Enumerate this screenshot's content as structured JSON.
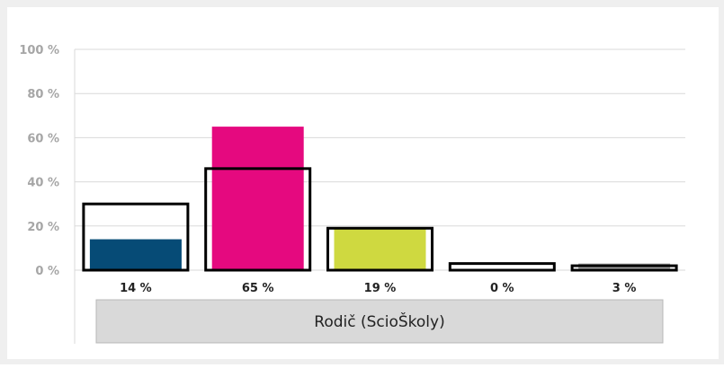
{
  "chart_data": {
    "type": "bar",
    "categories": [
      "",
      "",
      "",
      "",
      ""
    ],
    "series": [
      {
        "values": [
          14,
          65,
          19,
          0,
          3
        ]
      },
      {
        "values": [
          30,
          46,
          19,
          3,
          2
        ]
      }
    ],
    "data_labels": [
      "14 %",
      "65 %",
      "19 %",
      "0 %",
      "3 %"
    ],
    "y_ticks": [
      "0 %",
      "20 %",
      "40 %",
      "60 %",
      "80 %",
      "100 %"
    ],
    "ylim": [
      0,
      100
    ],
    "group_label": "Rodič (ScioŠkoly)",
    "grid": true,
    "colors": {
      "bars": [
        "#064b76",
        "#e5097f",
        "#cfd940",
        "#e8e8e8",
        "#a0a0a0"
      ],
      "outline": "#000000",
      "background": "#efefef",
      "plot_background": "#ffffff",
      "grid": "#d9d9d9",
      "tick_label": "#a6a6a6",
      "data_label": "#222222",
      "category_box": "#d9d9d9"
    }
  }
}
